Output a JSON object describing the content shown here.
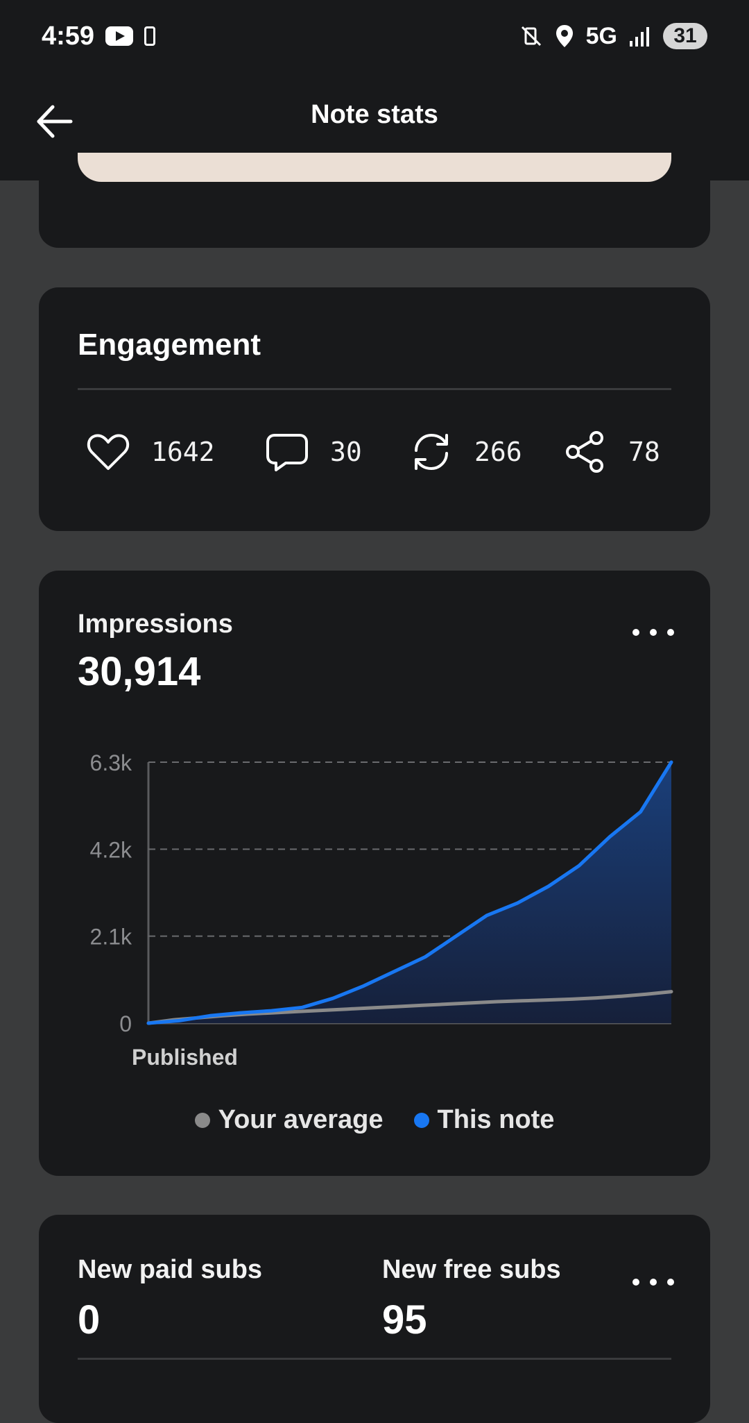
{
  "status_bar": {
    "time": "4:59",
    "network": "5G",
    "battery": "31",
    "icons": [
      "youtube-icon",
      "phone-icon",
      "mute-vibrate-icon",
      "location-icon",
      "signal-icon"
    ]
  },
  "app_bar": {
    "title": "Note stats",
    "back_icon": "arrow-left-icon"
  },
  "engagement": {
    "title": "Engagement",
    "items": [
      {
        "icon": "heart-icon",
        "value": "1642"
      },
      {
        "icon": "comment-icon",
        "value": "30"
      },
      {
        "icon": "restack-icon",
        "value": "266"
      },
      {
        "icon": "share-icon",
        "value": "78"
      }
    ]
  },
  "impressions": {
    "label": "Impressions",
    "value": "30,914",
    "more_icon": "more-horizontal-icon"
  },
  "chart_data": {
    "type": "area",
    "x_label_start": "Published",
    "y_ticks": [
      "0",
      "2.1k",
      "4.2k",
      "6.3k"
    ],
    "ylim": [
      0,
      6300
    ],
    "grid": true,
    "legend_position": "bottom-center",
    "series": [
      {
        "name": "Your average",
        "color": "#8a8a8a",
        "values": [
          0,
          80,
          130,
          180,
          220,
          250,
          280,
          310,
          340,
          370,
          400,
          430,
          460,
          490,
          520,
          540,
          560,
          580,
          610,
          650,
          700,
          760
        ]
      },
      {
        "name": "This note",
        "color": "#1877f2",
        "values": [
          0,
          60,
          180,
          250,
          300,
          380,
          600,
          900,
          1250,
          1600,
          2100,
          2600,
          2900,
          3300,
          3800,
          4500,
          5100,
          6300
        ]
      }
    ]
  },
  "subs": {
    "paid_label": "New paid subs",
    "paid_value": "0",
    "free_label": "New free subs",
    "free_value": "95"
  },
  "colors": {
    "background": "#3a3b3c",
    "card": "#18191b",
    "accent_blue": "#1877f2",
    "average_gray": "#8a8a8a",
    "beige": "#ebdfd5"
  }
}
